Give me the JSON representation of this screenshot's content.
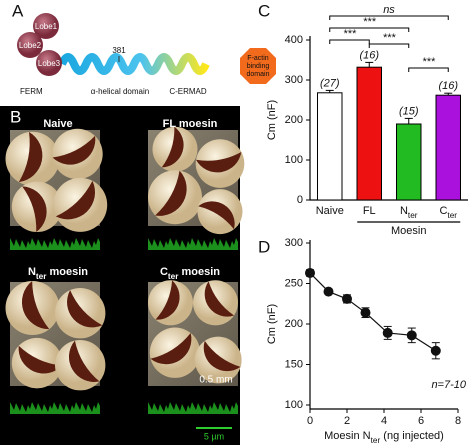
{
  "panel_labels": [
    "A",
    "B",
    "C",
    "D"
  ],
  "panel_a": {
    "lobes": [
      "Lobe1",
      "Lobe2",
      "Lobe3"
    ],
    "ferm": "FERM",
    "residue": "381",
    "helical": "α-helical domain",
    "cermad": "C-ERMAD",
    "actin": [
      "F-actin",
      "binding",
      "domain"
    ]
  },
  "panel_b": {
    "conditions": [
      [
        "Naive"
      ],
      [
        "FL moesin"
      ],
      [
        "N",
        "ter",
        " moesin"
      ],
      [
        "C",
        "ter",
        " moesin"
      ]
    ],
    "scale_image": "0.5 mm",
    "scale_strip": "5 µm"
  },
  "chart_data": [
    {
      "type": "bar",
      "ylabel": "Cm (nF)",
      "categories": [
        [
          "Naive"
        ],
        [
          "FL"
        ],
        [
          "N",
          "ter"
        ],
        [
          "C",
          "ter"
        ]
      ],
      "values": [
        268,
        332,
        190,
        262
      ],
      "errors": [
        6,
        12,
        14,
        5
      ],
      "colors": [
        "#ffffff",
        "#ee1111",
        "#22bb22",
        "#aa11dd"
      ],
      "n_labels": [
        "(27)",
        "(16)",
        "(15)",
        "(16)"
      ],
      "group_label": "Moesin",
      "significance": [
        {
          "pair": [
            0,
            3
          ],
          "label": "ns"
        },
        {
          "pair": [
            0,
            2
          ],
          "label": "***"
        },
        {
          "pair": [
            0,
            1
          ],
          "label": "***"
        },
        {
          "pair": [
            1,
            2
          ],
          "label": "***"
        },
        {
          "pair": [
            2,
            3
          ],
          "label": "***"
        }
      ],
      "ylim": [
        0,
        400
      ],
      "yticks": [
        0,
        100,
        200,
        300,
        400
      ]
    },
    {
      "type": "line",
      "ylabel": "Cm (nF)",
      "xlabel": [
        "Moesin N",
        "ter",
        " (ng injected)"
      ],
      "x": [
        0,
        1,
        2,
        3,
        4.2,
        5.5,
        6.8
      ],
      "values": [
        263,
        240,
        231,
        214,
        189,
        186,
        167
      ],
      "errors": [
        4,
        3,
        5,
        6,
        8,
        9,
        10
      ],
      "color": "#111111",
      "xlim": [
        0,
        8
      ],
      "xticks": [
        0,
        2,
        4,
        6,
        8
      ],
      "ylim": [
        100,
        300
      ],
      "yticks": [
        100,
        150,
        200,
        250,
        300
      ],
      "annotation": "n=7-10"
    }
  ]
}
